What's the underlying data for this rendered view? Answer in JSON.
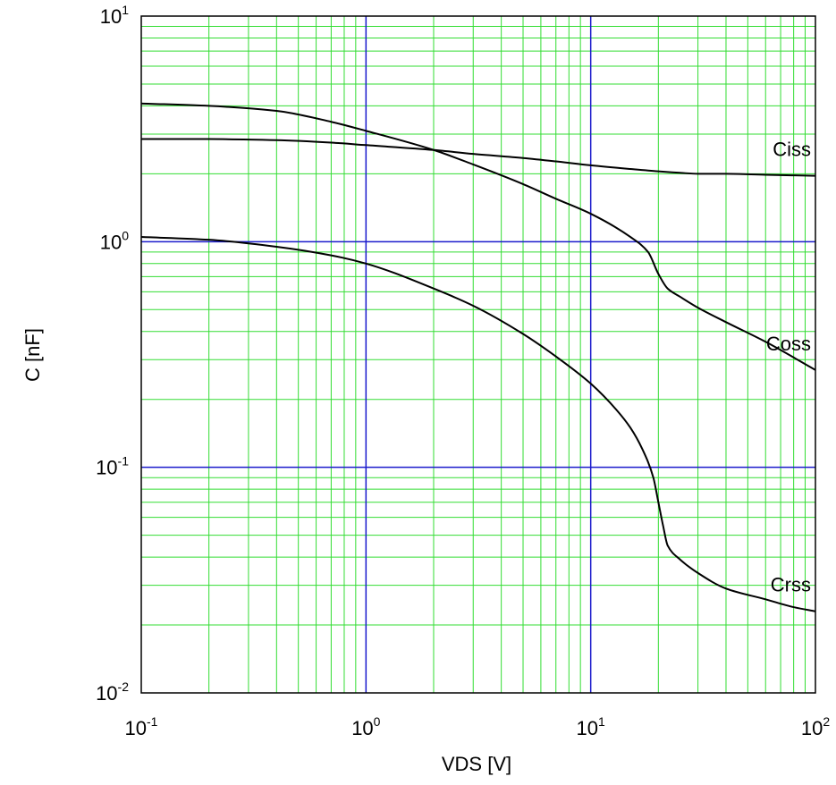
{
  "chart_data": {
    "type": "line",
    "title": "",
    "xlabel": "VDS [V]",
    "ylabel": "C [nF]",
    "x_scale": "log",
    "y_scale": "log",
    "xlim": [
      0.1,
      100
    ],
    "ylim": [
      0.01,
      10
    ],
    "grid": true,
    "x_ticks": [
      {
        "base": "10",
        "exp": "-1",
        "value": 0.1
      },
      {
        "base": "10",
        "exp": "0",
        "value": 1
      },
      {
        "base": "10",
        "exp": "1",
        "value": 10
      },
      {
        "base": "10",
        "exp": "2",
        "value": 100
      }
    ],
    "y_ticks": [
      {
        "base": "10",
        "exp": "-2",
        "value": 0.01
      },
      {
        "base": "10",
        "exp": "-1",
        "value": 0.1
      },
      {
        "base": "10",
        "exp": "0",
        "value": 1
      },
      {
        "base": "10",
        "exp": "1",
        "value": 10
      }
    ],
    "colors": {
      "minor_grid": "#33dd33",
      "major_grid": "#1a1acc",
      "curve": "#000000",
      "frame": "#000000"
    },
    "series": [
      {
        "name": "Ciss",
        "x": [
          0.1,
          0.2,
          0.4,
          0.7,
          1,
          2,
          3,
          5,
          7,
          10,
          15,
          20,
          25,
          30,
          40,
          60,
          100
        ],
        "y": [
          2.85,
          2.85,
          2.82,
          2.75,
          2.68,
          2.55,
          2.45,
          2.35,
          2.27,
          2.18,
          2.1,
          2.05,
          2.02,
          2.0,
          2.0,
          1.98,
          1.96
        ]
      },
      {
        "name": "Coss",
        "x": [
          0.1,
          0.2,
          0.4,
          0.7,
          1,
          2,
          3,
          5,
          7,
          10,
          15,
          18,
          20,
          22,
          25,
          30,
          40,
          60,
          100
        ],
        "y": [
          4.1,
          4.0,
          3.8,
          3.4,
          3.1,
          2.55,
          2.2,
          1.8,
          1.55,
          1.33,
          1.05,
          0.9,
          0.72,
          0.62,
          0.57,
          0.51,
          0.44,
          0.36,
          0.27
        ]
      },
      {
        "name": "Crss",
        "x": [
          0.1,
          0.2,
          0.4,
          0.7,
          1,
          2,
          3,
          5,
          7,
          10,
          13,
          15,
          17,
          19,
          20,
          21,
          22,
          25,
          30,
          40,
          60,
          80,
          100
        ],
        "y": [
          1.05,
          1.02,
          0.95,
          0.87,
          0.8,
          0.62,
          0.52,
          0.39,
          0.31,
          0.235,
          0.18,
          0.15,
          0.12,
          0.09,
          0.07,
          0.055,
          0.045,
          0.039,
          0.034,
          0.029,
          0.026,
          0.024,
          0.023
        ]
      }
    ]
  }
}
